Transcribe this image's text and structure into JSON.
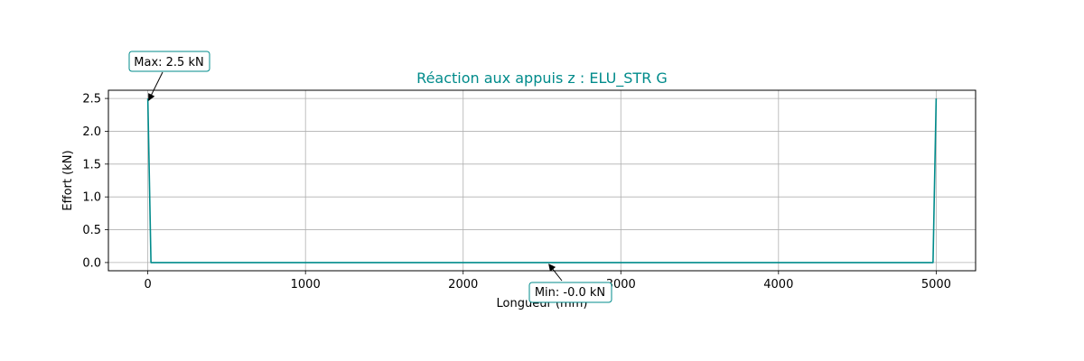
{
  "colors": {
    "series": "#008b8b",
    "grid": "#b0b0b0",
    "annotation_border": "#008b8b",
    "annotation_arrow": "#000000"
  },
  "chart_data": {
    "type": "line",
    "title": "Réaction aux appuis z : ELU_STR G",
    "xlabel": "Longueur (mm)",
    "ylabel": "Effort (kN)",
    "xlim": [
      -250,
      5250
    ],
    "ylim": [
      -0.125,
      2.625
    ],
    "xticks": [
      0,
      1000,
      2000,
      3000,
      4000,
      5000
    ],
    "xtick_labels": [
      "0",
      "1000",
      "2000",
      "3000",
      "4000",
      "5000"
    ],
    "yticks": [
      0.0,
      0.5,
      1.0,
      1.5,
      2.0,
      2.5
    ],
    "ytick_labels": [
      "0.0",
      "0.5",
      "1.0",
      "1.5",
      "2.0",
      "2.5"
    ],
    "grid": true,
    "series": [
      {
        "x": [
          0,
          20,
          4980,
          5000
        ],
        "y": [
          2.5,
          0.0,
          0.0,
          2.5
        ]
      }
    ],
    "annotations": [
      {
        "label": "Max: 2.5 kN",
        "x": 0,
        "y": 2.5,
        "kind": "max"
      },
      {
        "label": "Min: -0.0 kN",
        "x": 2550,
        "y": 0.0,
        "kind": "min"
      }
    ]
  }
}
